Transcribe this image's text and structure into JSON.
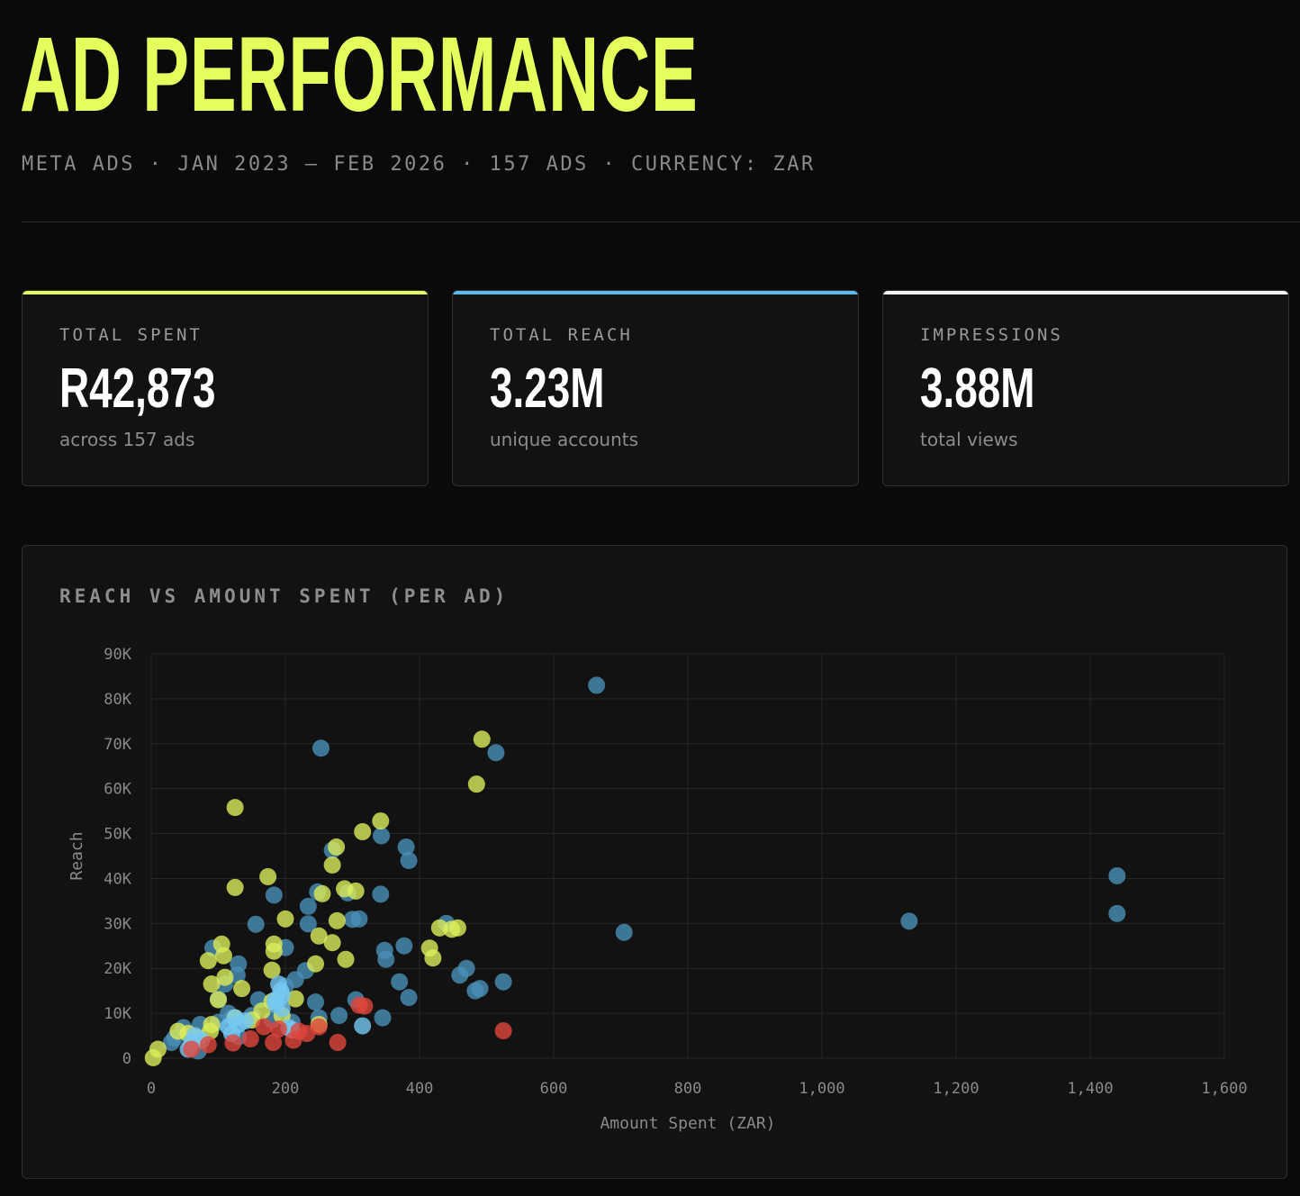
{
  "header": {
    "title": "AD PERFORMANCE",
    "subtitle": "META ADS · JAN 2023 – FEB 2026 · 157 ADS · CURRENCY: ZAR"
  },
  "cards": [
    {
      "label": "TOTAL SPENT",
      "value": "R42,873",
      "sub": "across 157 ads",
      "accent": "#e6ff5c"
    },
    {
      "label": "TOTAL REACH",
      "value": "3.23M",
      "sub": "unique accounts",
      "accent": "#5ab8ee"
    },
    {
      "label": "IMPRESSIONS",
      "value": "3.88M",
      "sub": "total views",
      "accent": "#f2f2f2"
    }
  ],
  "colors": {
    "background": "#0a0a0a",
    "panel": "#121212",
    "grid": "#262626",
    "series_blue": "#4a90b8",
    "series_yellow": "#dcec5a",
    "series_cyan": "#74c8f2",
    "series_red": "#e0463c"
  },
  "chart_data": {
    "type": "scatter",
    "title": "REACH VS AMOUNT SPENT (PER AD)",
    "xlabel": "Amount Spent (ZAR)",
    "ylabel": "Reach",
    "xlim": [
      0,
      1600
    ],
    "ylim": [
      0,
      90000
    ],
    "xticks": [
      0,
      200,
      400,
      600,
      800,
      1000,
      1200,
      1400,
      1600
    ],
    "xtick_labels": [
      "0",
      "200",
      "400",
      "600",
      "800",
      "1,000",
      "1,200",
      "1,400",
      "1,600"
    ],
    "yticks": [
      0,
      10000,
      20000,
      30000,
      40000,
      50000,
      60000,
      70000,
      80000,
      90000
    ],
    "ytick_labels": [
      "0",
      "10K",
      "20K",
      "30K",
      "40K",
      "50K",
      "60K",
      "70K",
      "80K",
      "90K"
    ],
    "grid": true,
    "series": [
      {
        "name": "blue",
        "color": "#4a90b8",
        "points": [
          [
            664,
            83000
          ],
          [
            253,
            69000
          ],
          [
            514,
            68000
          ],
          [
            1440,
            40600
          ],
          [
            1440,
            32200
          ],
          [
            1130,
            30500
          ],
          [
            705,
            28000
          ],
          [
            343,
            49500
          ],
          [
            380,
            47000
          ],
          [
            384,
            44000
          ],
          [
            270,
            46300
          ],
          [
            342,
            36500
          ],
          [
            183,
            36300
          ],
          [
            248,
            37000
          ],
          [
            234,
            33800
          ],
          [
            156,
            29800
          ],
          [
            234,
            29900
          ],
          [
            300,
            30900
          ],
          [
            310,
            31000
          ],
          [
            293,
            36800
          ],
          [
            200,
            24600
          ],
          [
            440,
            30000
          ],
          [
            377,
            25000
          ],
          [
            348,
            24000
          ],
          [
            350,
            22000
          ],
          [
            370,
            17000
          ],
          [
            384,
            13500
          ],
          [
            470,
            20000
          ],
          [
            460,
            18500
          ],
          [
            525,
            17000
          ],
          [
            490,
            15500
          ],
          [
            483,
            15000
          ],
          [
            92,
            24500
          ],
          [
            130,
            21000
          ],
          [
            128,
            18500
          ],
          [
            110,
            16500
          ],
          [
            100,
            13200
          ],
          [
            160,
            13000
          ],
          [
            190,
            12800
          ],
          [
            215,
            17500
          ],
          [
            230,
            19500
          ],
          [
            200,
            16000
          ],
          [
            245,
            12500
          ],
          [
            305,
            13000
          ],
          [
            280,
            9500
          ],
          [
            345,
            9000
          ],
          [
            73,
            7500
          ],
          [
            48,
            6800
          ],
          [
            35,
            4500
          ],
          [
            30,
            3500
          ],
          [
            70,
            1600
          ],
          [
            58,
            2200
          ],
          [
            100,
            8000
          ],
          [
            115,
            10000
          ],
          [
            120,
            9000
          ],
          [
            150,
            9500
          ],
          [
            180,
            8500
          ],
          [
            210,
            8000
          ],
          [
            250,
            9000
          ],
          [
            130,
            4800
          ]
        ]
      },
      {
        "name": "yellow",
        "color": "#dcec5a",
        "points": [
          [
            493,
            71000
          ],
          [
            485,
            61000
          ],
          [
            125,
            55800
          ],
          [
            342,
            52800
          ],
          [
            315,
            50400
          ],
          [
            276,
            47000
          ],
          [
            270,
            43000
          ],
          [
            174,
            40400
          ],
          [
            125,
            38000
          ],
          [
            288,
            37700
          ],
          [
            305,
            37200
          ],
          [
            255,
            36600
          ],
          [
            200,
            31000
          ],
          [
            277,
            30600
          ],
          [
            430,
            29000
          ],
          [
            457,
            29000
          ],
          [
            448,
            28700
          ],
          [
            250,
            27200
          ],
          [
            270,
            25700
          ],
          [
            183,
            25400
          ],
          [
            183,
            23800
          ],
          [
            415,
            24500
          ],
          [
            420,
            22300
          ],
          [
            105,
            25400
          ],
          [
            108,
            22800
          ],
          [
            85,
            21700
          ],
          [
            245,
            21000
          ],
          [
            290,
            22000
          ],
          [
            180,
            19600
          ],
          [
            110,
            18000
          ],
          [
            90,
            16500
          ],
          [
            135,
            15500
          ],
          [
            100,
            13000
          ],
          [
            180,
            12600
          ],
          [
            215,
            13200
          ],
          [
            125,
            9000
          ],
          [
            165,
            10500
          ],
          [
            195,
            9500
          ],
          [
            150,
            8500
          ],
          [
            90,
            7500
          ],
          [
            88,
            6000
          ],
          [
            70,
            4500
          ],
          [
            40,
            6000
          ],
          [
            55,
            5500
          ],
          [
            10,
            2000
          ],
          [
            3,
            100
          ],
          [
            250,
            7500
          ]
        ]
      },
      {
        "name": "cyan",
        "color": "#74c8f2",
        "points": [
          [
            190,
            16500
          ],
          [
            193,
            15000
          ],
          [
            195,
            14000
          ],
          [
            185,
            13000
          ],
          [
            185,
            12000
          ],
          [
            195,
            11000
          ],
          [
            125,
            9000
          ],
          [
            130,
            7500
          ],
          [
            140,
            8300
          ],
          [
            115,
            7000
          ],
          [
            65,
            5000
          ],
          [
            75,
            4000
          ],
          [
            60,
            3500
          ],
          [
            55,
            2000
          ],
          [
            120,
            5500
          ],
          [
            315,
            7200
          ],
          [
            210,
            6300
          ],
          [
            205,
            6800
          ]
        ]
      },
      {
        "name": "red",
        "color": "#e0463c",
        "points": [
          [
            525,
            6100
          ],
          [
            310,
            11800
          ],
          [
            318,
            11600
          ],
          [
            278,
            3500
          ],
          [
            182,
            3500
          ],
          [
            212,
            4000
          ],
          [
            232,
            5500
          ],
          [
            190,
            6500
          ],
          [
            168,
            7000
          ],
          [
            148,
            4300
          ],
          [
            122,
            3400
          ],
          [
            85,
            3000
          ],
          [
            60,
            2000
          ],
          [
            220,
            6000
          ],
          [
            250,
            7000
          ]
        ]
      }
    ]
  }
}
